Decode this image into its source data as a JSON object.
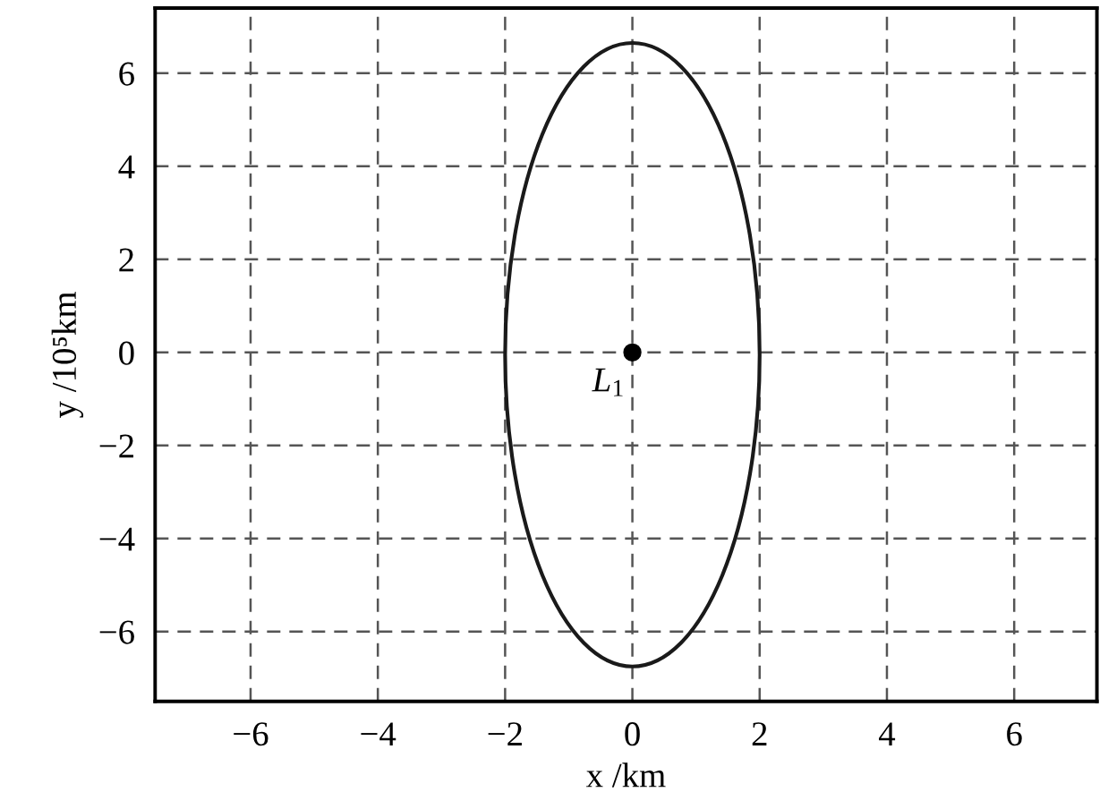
{
  "chart_data": {
    "type": "scatter",
    "xlabel": "x /km",
    "ylabel": "y /10⁵km",
    "xlim": [
      -7.5,
      7.3
    ],
    "ylim": [
      -7.5,
      7.4
    ],
    "xticks": [
      -6,
      -4,
      -2,
      0,
      2,
      4,
      6
    ],
    "yticks": [
      -6,
      -4,
      -2,
      0,
      2,
      4,
      6
    ],
    "grid": true,
    "marker": "circle",
    "series": [
      {
        "color": "#000000",
        "x": [
          0
        ],
        "values": [
          0
        ]
      }
    ],
    "annotations": [
      {
        "text": "L$_{1}$",
        "x": 0,
        "y": 0
      }
    ]
  }
}
